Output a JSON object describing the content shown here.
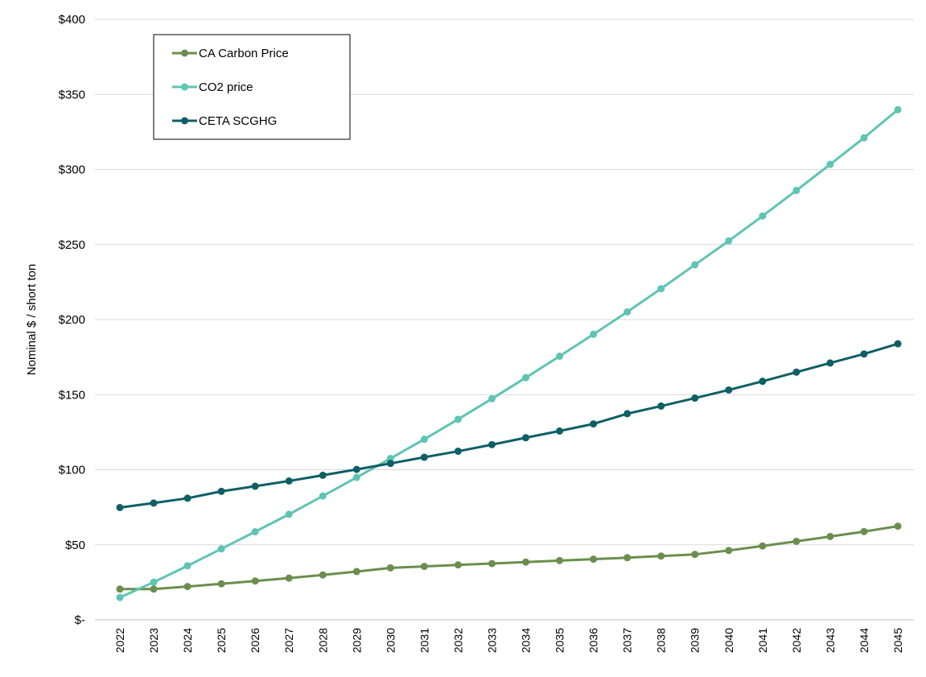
{
  "chart_data": {
    "type": "line",
    "title": "",
    "xlabel": "",
    "ylabel": "Nominal $ / short ton",
    "ylim": [
      0,
      400
    ],
    "ytick_values": [
      0,
      50,
      100,
      150,
      200,
      250,
      300,
      350,
      400
    ],
    "ytick_labels": [
      "$-",
      "$50",
      "$100",
      "$150",
      "$200",
      "$250",
      "$300",
      "$350",
      "$400"
    ],
    "grid": true,
    "legend_position": "top-left",
    "x": [
      "2022",
      "2023",
      "2024",
      "2025",
      "2026",
      "2027",
      "2028",
      "2029",
      "2030",
      "2031",
      "2032",
      "2033",
      "2034",
      "2035",
      "2036",
      "2037",
      "2038",
      "2039",
      "2040",
      "2041",
      "2042",
      "2043",
      "2044",
      "2045"
    ],
    "series": [
      {
        "name": "CA Carbon Price",
        "color": "#6B8E4E",
        "values": [
          20.5,
          20.5,
          22.2,
          24.0,
          25.9,
          27.8,
          29.9,
          32.2,
          34.6,
          35.6,
          36.6,
          37.5,
          38.5,
          39.5,
          40.4,
          41.4,
          42.5,
          43.6,
          46.2,
          49.2,
          52.3,
          55.5,
          58.8,
          62.4
        ]
      },
      {
        "name": "CO2 price",
        "color": "#5EC4B4",
        "values": [
          14.9,
          25.1,
          36.0,
          47.3,
          58.7,
          70.3,
          82.5,
          94.9,
          107.5,
          120.3,
          133.6,
          147.3,
          161.3,
          175.6,
          190.2,
          205.1,
          220.6,
          236.5,
          252.4,
          269.0,
          286.0,
          303.4,
          321.1,
          339.8
        ]
      },
      {
        "name": "CETA SCGHG",
        "color": "#0E5F66",
        "values": [
          74.8,
          77.8,
          81.0,
          85.6,
          89.0,
          92.5,
          96.3,
          100.2,
          104.2,
          108.3,
          112.3,
          116.7,
          121.3,
          125.8,
          130.5,
          137.3,
          142.4,
          147.7,
          153.1,
          158.9,
          165.0,
          171.1,
          177.1,
          183.9
        ]
      }
    ]
  }
}
